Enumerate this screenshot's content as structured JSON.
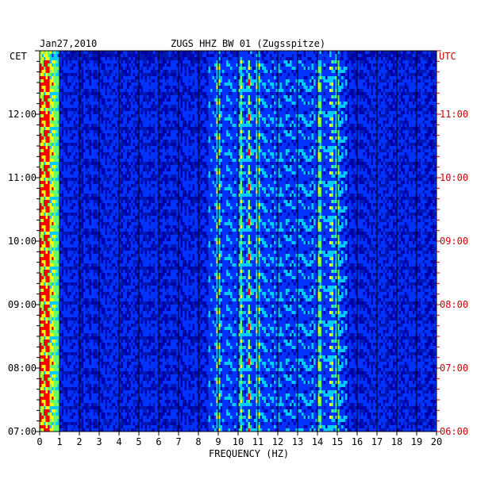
{
  "chart_data": {
    "type": "heatmap",
    "subtype": "spectrogram",
    "date_label": "Jan27,2010",
    "title": "ZUGS HHZ BW 01 (Zugsspitze)",
    "xlabel": "FREQUENCY (HZ)",
    "xlim": [
      0,
      20
    ],
    "x_ticks": [
      "0",
      "1",
      "2",
      "3",
      "4",
      "5",
      "6",
      "7",
      "8",
      "9",
      "10",
      "11",
      "12",
      "13",
      "14",
      "15",
      "16",
      "17",
      "18",
      "19",
      "20"
    ],
    "left_axis": {
      "label": "CET",
      "color": "#000000",
      "ticks": [
        {
          "label": "12:00",
          "hour": 12
        },
        {
          "label": "11:00",
          "hour": 11
        },
        {
          "label": "10:00",
          "hour": 10
        },
        {
          "label": "09:00",
          "hour": 9
        },
        {
          "label": "08:00",
          "hour": 8
        },
        {
          "label": "07:00",
          "hour": 7
        }
      ],
      "ylim": [
        7,
        13
      ]
    },
    "right_axis": {
      "label": "UTC",
      "color": "#cc0000",
      "ticks": [
        {
          "label": "11:00",
          "hour": 11
        },
        {
          "label": "10:00",
          "hour": 10
        },
        {
          "label": "09:00",
          "hour": 9
        },
        {
          "label": "08:00",
          "hour": 8
        },
        {
          "label": "07:00",
          "hour": 7
        },
        {
          "label": "06:00",
          "hour": 6
        }
      ],
      "ylim": [
        6,
        12
      ]
    },
    "grid": true,
    "colormap": [
      "#0000aa",
      "#0033ff",
      "#00ccff",
      "#66ff66",
      "#ffff00",
      "#ff0000"
    ],
    "background_color": "#0018b0",
    "grid_color": "#000000"
  }
}
